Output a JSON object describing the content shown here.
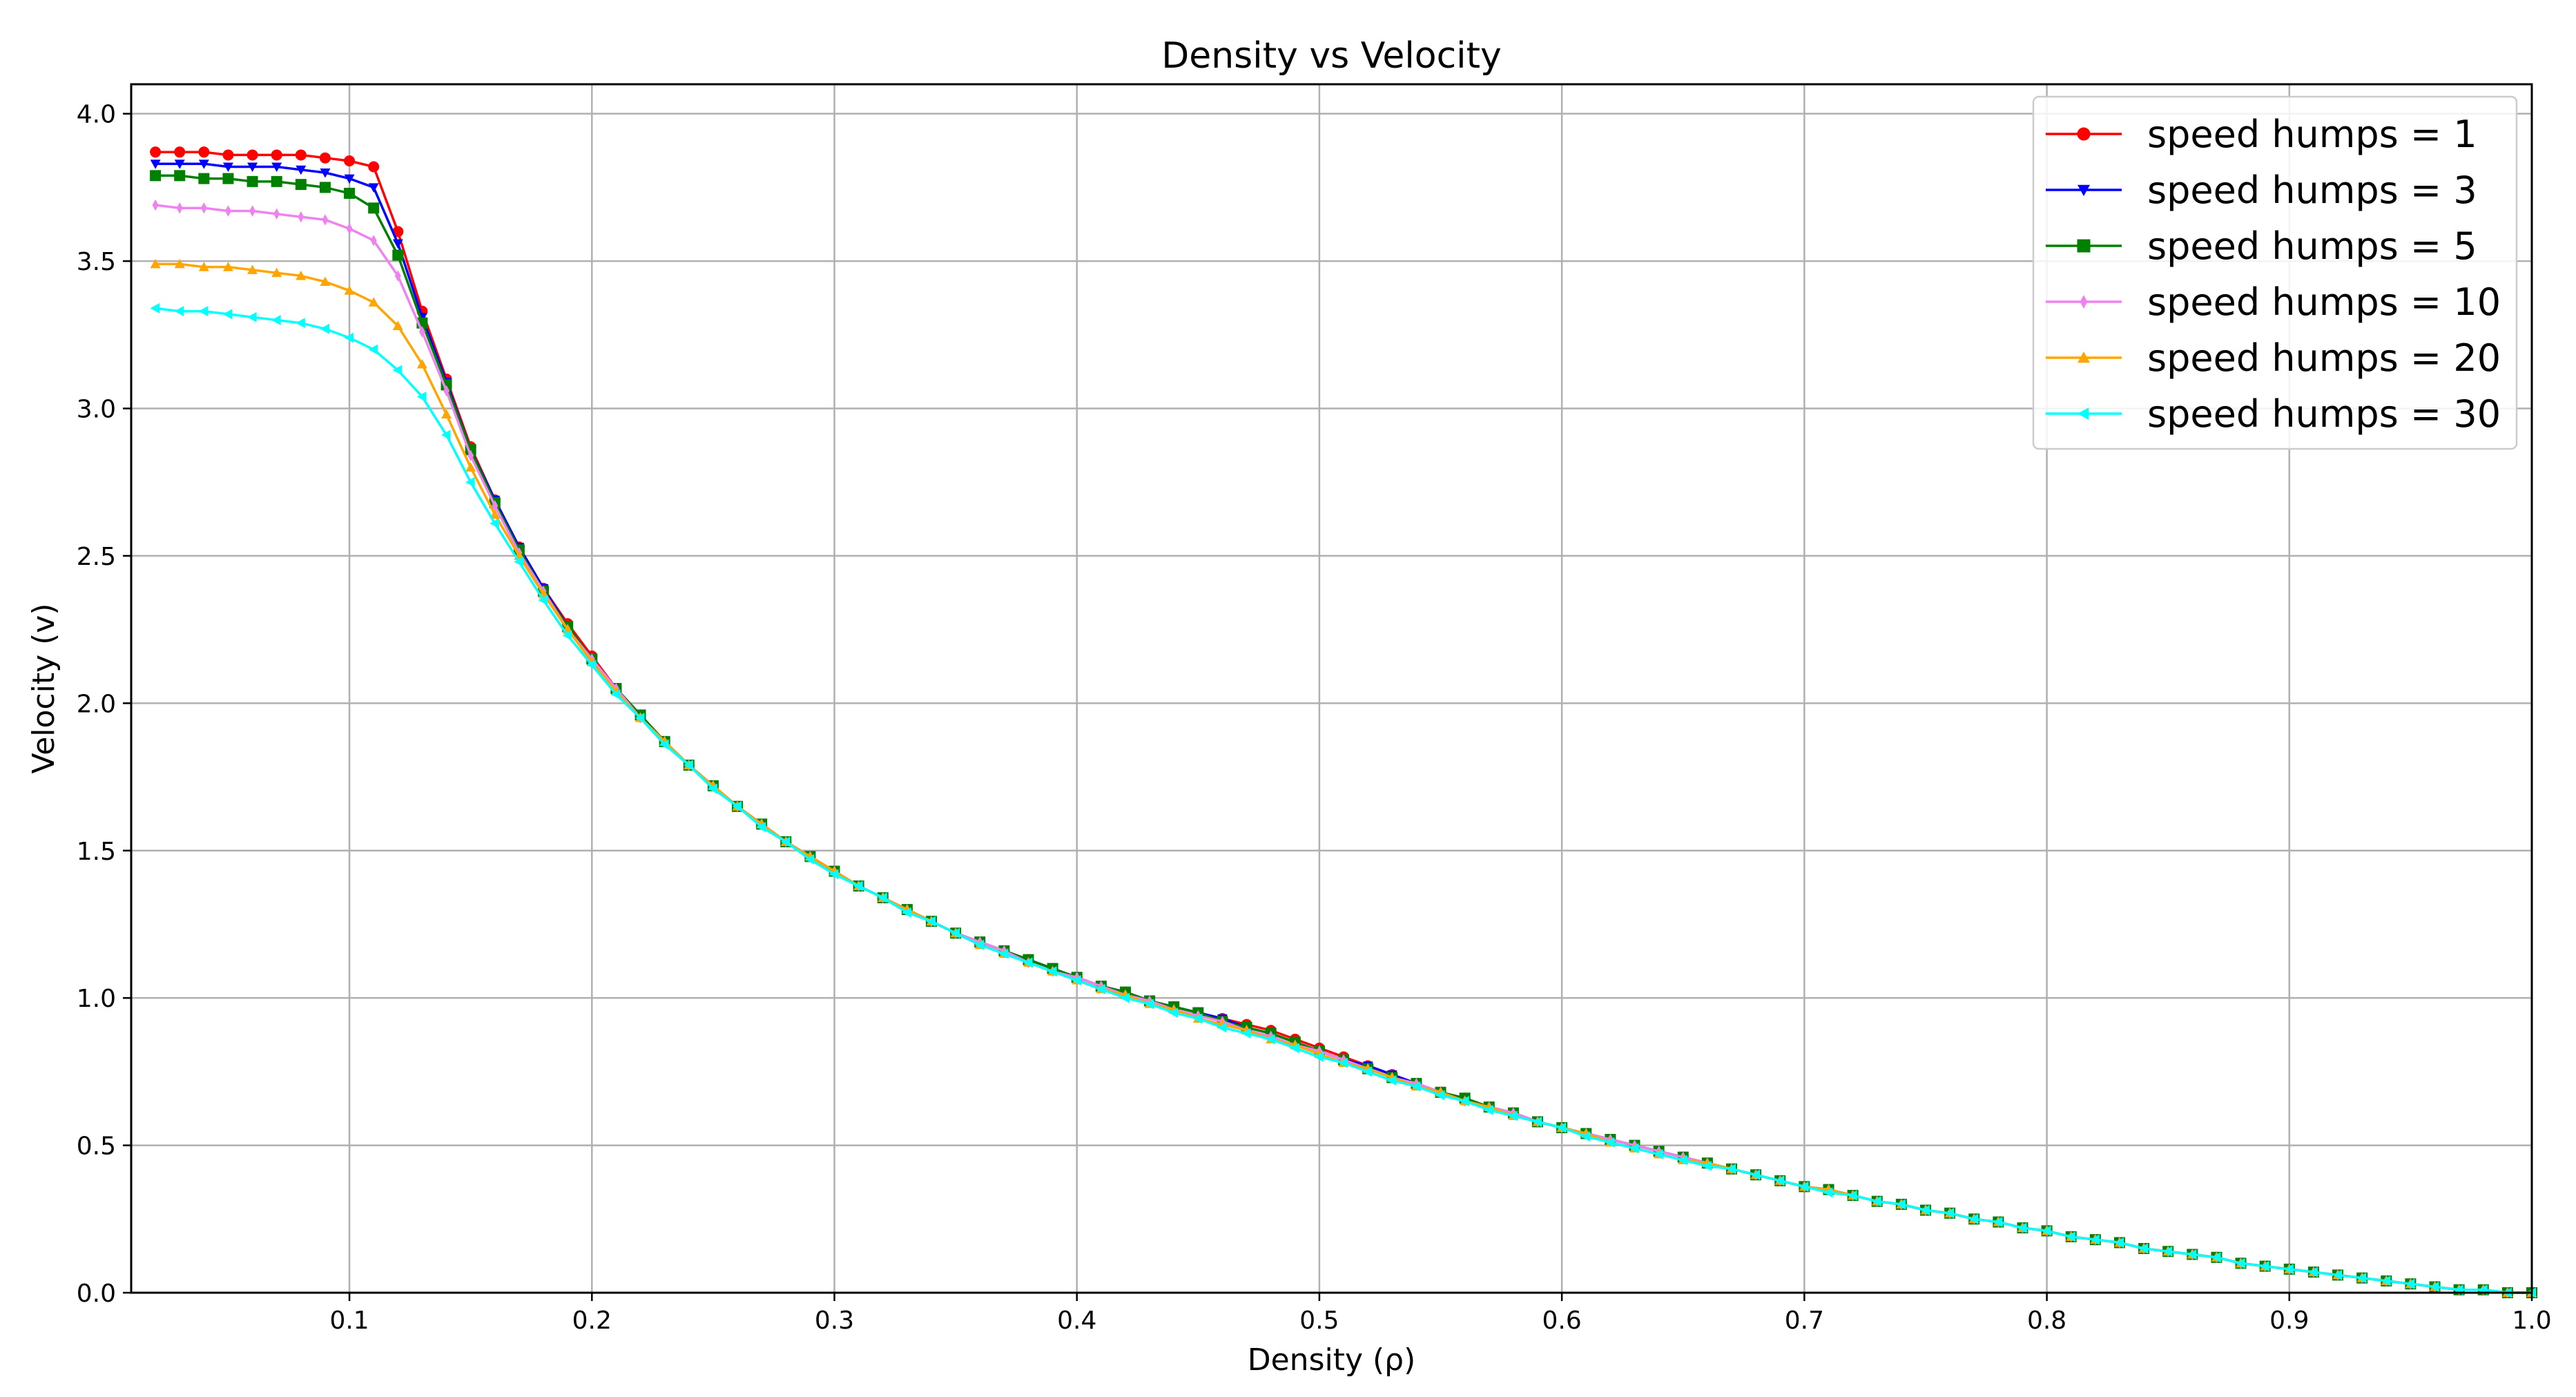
{
  "chart_data": {
    "type": "line",
    "title": "Density vs Velocity",
    "xlabel": "Density (ρ)",
    "ylabel": "Velocity (v)",
    "xlim": [
      0.01,
      1.0
    ],
    "ylim": [
      0.0,
      4.1
    ],
    "grid": true,
    "legend_position": "top-right",
    "xticks": [
      "0.1",
      "0.2",
      "0.3",
      "0.4",
      "0.5",
      "0.6",
      "0.7",
      "0.8",
      "0.9",
      "1.0"
    ],
    "yticks": [
      "0.0",
      "0.5",
      "1.0",
      "1.5",
      "2.0",
      "2.5",
      "3.0",
      "3.5",
      "4.0"
    ],
    "x": [
      0.02,
      0.03,
      0.04,
      0.05,
      0.06,
      0.07,
      0.08,
      0.09,
      0.1,
      0.11,
      0.12,
      0.13,
      0.14,
      0.15,
      0.16,
      0.17,
      0.18,
      0.19,
      0.2,
      0.21,
      0.22,
      0.23,
      0.24,
      0.25,
      0.26,
      0.27,
      0.28,
      0.29,
      0.3,
      0.31,
      0.32,
      0.33,
      0.34,
      0.35,
      0.36,
      0.37,
      0.38,
      0.39,
      0.4,
      0.41,
      0.42,
      0.43,
      0.44,
      0.45,
      0.46,
      0.47,
      0.48,
      0.49,
      0.5,
      0.51,
      0.52,
      0.53,
      0.54,
      0.55,
      0.56,
      0.57,
      0.58,
      0.59,
      0.6,
      0.61,
      0.62,
      0.63,
      0.64,
      0.65,
      0.66,
      0.67,
      0.68,
      0.69,
      0.7,
      0.71,
      0.72,
      0.73,
      0.74,
      0.75,
      0.76,
      0.77,
      0.78,
      0.79,
      0.8,
      0.81,
      0.82,
      0.83,
      0.84,
      0.85,
      0.86,
      0.87,
      0.88,
      0.89,
      0.9,
      0.91,
      0.92,
      0.93,
      0.94,
      0.95,
      0.96,
      0.97,
      0.98,
      0.99,
      1.0
    ],
    "series": [
      {
        "name": "speed humps = 1",
        "color": "#ff0000",
        "marker": "circle",
        "values": [
          3.87,
          3.87,
          3.87,
          3.86,
          3.86,
          3.86,
          3.86,
          3.85,
          3.84,
          3.82,
          3.6,
          3.33,
          3.1,
          2.87,
          2.69,
          2.53,
          2.39,
          2.27,
          2.16,
          2.05,
          1.96,
          1.87,
          1.79,
          1.72,
          1.65,
          1.59,
          1.53,
          1.48,
          1.43,
          1.38,
          1.34,
          1.3,
          1.26,
          1.22,
          1.19,
          1.16,
          1.13,
          1.1,
          1.07,
          1.04,
          1.02,
          0.99,
          0.97,
          0.95,
          0.93,
          0.91,
          0.89,
          0.86,
          0.83,
          0.8,
          0.77,
          0.74,
          0.71,
          0.68,
          0.66,
          0.63,
          0.61,
          0.58,
          0.56,
          0.54,
          0.52,
          0.5,
          0.48,
          0.46,
          0.44,
          0.42,
          0.4,
          0.38,
          0.36,
          0.35,
          0.33,
          0.31,
          0.3,
          0.28,
          0.27,
          0.25,
          0.24,
          0.22,
          0.21,
          0.19,
          0.18,
          0.17,
          0.15,
          0.14,
          0.13,
          0.12,
          0.1,
          0.09,
          0.08,
          0.07,
          0.06,
          0.05,
          0.04,
          0.03,
          0.02,
          0.01,
          0.01,
          0.0,
          0.0
        ]
      },
      {
        "name": "speed humps = 3",
        "color": "#0000ff",
        "marker": "triangle-down",
        "values": [
          3.83,
          3.83,
          3.83,
          3.82,
          3.82,
          3.82,
          3.81,
          3.8,
          3.78,
          3.75,
          3.56,
          3.31,
          3.09,
          2.86,
          2.69,
          2.53,
          2.39,
          2.26,
          2.15,
          2.05,
          1.96,
          1.87,
          1.79,
          1.72,
          1.65,
          1.59,
          1.53,
          1.48,
          1.43,
          1.38,
          1.34,
          1.3,
          1.26,
          1.22,
          1.19,
          1.16,
          1.13,
          1.1,
          1.07,
          1.04,
          1.02,
          0.99,
          0.97,
          0.95,
          0.93,
          0.9,
          0.88,
          0.85,
          0.82,
          0.79,
          0.77,
          0.74,
          0.71,
          0.68,
          0.66,
          0.63,
          0.61,
          0.58,
          0.56,
          0.54,
          0.52,
          0.5,
          0.48,
          0.46,
          0.44,
          0.42,
          0.4,
          0.38,
          0.36,
          0.35,
          0.33,
          0.31,
          0.3,
          0.28,
          0.27,
          0.25,
          0.24,
          0.22,
          0.21,
          0.19,
          0.18,
          0.17,
          0.15,
          0.14,
          0.13,
          0.12,
          0.1,
          0.09,
          0.08,
          0.07,
          0.06,
          0.05,
          0.04,
          0.03,
          0.02,
          0.01,
          0.01,
          0.0,
          0.0
        ]
      },
      {
        "name": "speed humps = 5",
        "color": "#008000",
        "marker": "square",
        "values": [
          3.79,
          3.79,
          3.78,
          3.78,
          3.77,
          3.77,
          3.76,
          3.75,
          3.73,
          3.68,
          3.52,
          3.29,
          3.08,
          2.86,
          2.68,
          2.52,
          2.38,
          2.26,
          2.15,
          2.05,
          1.96,
          1.87,
          1.79,
          1.72,
          1.65,
          1.59,
          1.53,
          1.48,
          1.43,
          1.38,
          1.34,
          1.3,
          1.26,
          1.22,
          1.19,
          1.16,
          1.13,
          1.1,
          1.07,
          1.04,
          1.02,
          0.99,
          0.97,
          0.95,
          0.92,
          0.9,
          0.88,
          0.85,
          0.82,
          0.79,
          0.76,
          0.73,
          0.71,
          0.68,
          0.66,
          0.63,
          0.61,
          0.58,
          0.56,
          0.54,
          0.52,
          0.5,
          0.48,
          0.46,
          0.44,
          0.42,
          0.4,
          0.38,
          0.36,
          0.35,
          0.33,
          0.31,
          0.3,
          0.28,
          0.27,
          0.25,
          0.24,
          0.22,
          0.21,
          0.19,
          0.18,
          0.17,
          0.15,
          0.14,
          0.13,
          0.12,
          0.1,
          0.09,
          0.08,
          0.07,
          0.06,
          0.05,
          0.04,
          0.03,
          0.02,
          0.01,
          0.01,
          0.0,
          0.0
        ]
      },
      {
        "name": "speed humps = 10",
        "color": "#ee82ee",
        "marker": "thin-diamond",
        "values": [
          3.69,
          3.68,
          3.68,
          3.67,
          3.67,
          3.66,
          3.65,
          3.64,
          3.61,
          3.57,
          3.45,
          3.26,
          3.06,
          2.84,
          2.67,
          2.51,
          2.38,
          2.25,
          2.15,
          2.05,
          1.95,
          1.87,
          1.79,
          1.72,
          1.65,
          1.59,
          1.53,
          1.48,
          1.43,
          1.38,
          1.34,
          1.3,
          1.26,
          1.22,
          1.19,
          1.16,
          1.12,
          1.09,
          1.07,
          1.04,
          1.01,
          0.99,
          0.96,
          0.94,
          0.92,
          0.89,
          0.87,
          0.84,
          0.82,
          0.79,
          0.76,
          0.73,
          0.71,
          0.68,
          0.65,
          0.63,
          0.61,
          0.58,
          0.56,
          0.54,
          0.52,
          0.5,
          0.48,
          0.46,
          0.44,
          0.42,
          0.4,
          0.38,
          0.36,
          0.35,
          0.33,
          0.31,
          0.3,
          0.28,
          0.27,
          0.25,
          0.24,
          0.22,
          0.21,
          0.19,
          0.18,
          0.17,
          0.15,
          0.14,
          0.13,
          0.12,
          0.1,
          0.09,
          0.08,
          0.07,
          0.06,
          0.05,
          0.04,
          0.03,
          0.02,
          0.01,
          0.01,
          0.0,
          0.0
        ]
      },
      {
        "name": "speed humps = 20",
        "color": "#ffa500",
        "marker": "triangle-up",
        "values": [
          3.49,
          3.49,
          3.48,
          3.48,
          3.47,
          3.46,
          3.45,
          3.43,
          3.4,
          3.36,
          3.28,
          3.15,
          2.98,
          2.8,
          2.64,
          2.5,
          2.37,
          2.25,
          2.14,
          2.04,
          1.95,
          1.87,
          1.79,
          1.72,
          1.65,
          1.59,
          1.53,
          1.48,
          1.43,
          1.38,
          1.34,
          1.3,
          1.26,
          1.22,
          1.18,
          1.15,
          1.12,
          1.09,
          1.06,
          1.03,
          1.01,
          0.98,
          0.96,
          0.93,
          0.91,
          0.89,
          0.86,
          0.84,
          0.81,
          0.78,
          0.76,
          0.73,
          0.7,
          0.68,
          0.65,
          0.63,
          0.6,
          0.58,
          0.56,
          0.54,
          0.51,
          0.49,
          0.47,
          0.45,
          0.44,
          0.42,
          0.4,
          0.38,
          0.36,
          0.35,
          0.33,
          0.31,
          0.3,
          0.28,
          0.27,
          0.25,
          0.24,
          0.22,
          0.21,
          0.19,
          0.18,
          0.17,
          0.15,
          0.14,
          0.13,
          0.12,
          0.1,
          0.09,
          0.08,
          0.07,
          0.06,
          0.05,
          0.04,
          0.03,
          0.02,
          0.01,
          0.01,
          0.0,
          0.0
        ]
      },
      {
        "name": "speed humps = 30",
        "color": "#00ffff",
        "marker": "triangle-left",
        "values": [
          3.34,
          3.33,
          3.33,
          3.32,
          3.31,
          3.3,
          3.29,
          3.27,
          3.24,
          3.2,
          3.13,
          3.04,
          2.91,
          2.75,
          2.61,
          2.48,
          2.35,
          2.23,
          2.13,
          2.03,
          1.95,
          1.86,
          1.79,
          1.71,
          1.65,
          1.58,
          1.53,
          1.47,
          1.42,
          1.38,
          1.34,
          1.29,
          1.26,
          1.22,
          1.18,
          1.15,
          1.12,
          1.09,
          1.06,
          1.03,
          1.0,
          0.98,
          0.95,
          0.93,
          0.9,
          0.88,
          0.86,
          0.83,
          0.8,
          0.78,
          0.75,
          0.72,
          0.7,
          0.67,
          0.65,
          0.62,
          0.6,
          0.58,
          0.56,
          0.53,
          0.51,
          0.49,
          0.47,
          0.45,
          0.43,
          0.42,
          0.4,
          0.38,
          0.36,
          0.34,
          0.33,
          0.31,
          0.3,
          0.28,
          0.27,
          0.25,
          0.24,
          0.22,
          0.21,
          0.19,
          0.18,
          0.17,
          0.15,
          0.14,
          0.13,
          0.12,
          0.1,
          0.09,
          0.08,
          0.07,
          0.06,
          0.05,
          0.04,
          0.03,
          0.02,
          0.01,
          0.01,
          0.0,
          0.0
        ]
      }
    ]
  }
}
